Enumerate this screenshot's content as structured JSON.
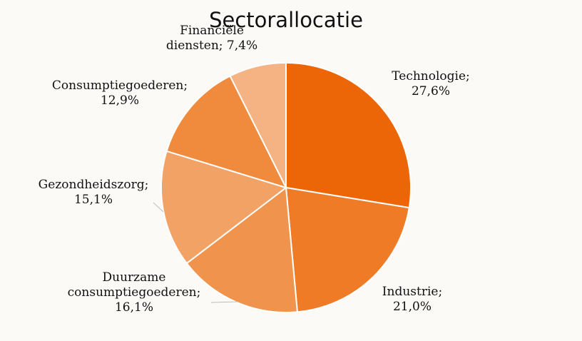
{
  "chart_data": {
    "type": "pie",
    "title": "Sectorallocatie",
    "start_angle_deg": 0,
    "direction": "clockwise",
    "slices": [
      {
        "name": "Technologie",
        "value": 27.6,
        "label_lines": [
          "Technologie;",
          "27,6%"
        ],
        "color": "#ec6608"
      },
      {
        "name": "Industrie",
        "value": 21.0,
        "label_lines": [
          "Industrie;",
          "21,0%"
        ],
        "color": "#ef7b27"
      },
      {
        "name": "Duurzame consumptiegoederen",
        "value": 16.1,
        "label_lines": [
          "Duurzame",
          "consumptiegoederen;",
          "16,1%"
        ],
        "color": "#f0934d"
      },
      {
        "name": "Gezondheidszorg",
        "value": 15.1,
        "label_lines": [
          "Gezondheidszorg;",
          "15,1%"
        ],
        "color": "#f2a265"
      },
      {
        "name": "Consumptiegoederen",
        "value": 12.9,
        "label_lines": [
          "Consumptiegoederen;",
          "12,9%"
        ],
        "color": "#f08a3c"
      },
      {
        "name": "Financiële diensten",
        "value": 7.4,
        "label_lines": [
          "Financiële",
          "diensten; 7,4%"
        ],
        "color": "#f5b283"
      }
    ]
  }
}
